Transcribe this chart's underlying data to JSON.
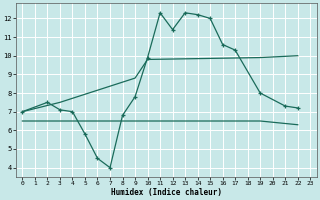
{
  "background_color": "#c8e8e8",
  "grid_color": "#ffffff",
  "line_color": "#1a6b5a",
  "xlabel": "Humidex (Indice chaleur)",
  "xlim": [
    -0.5,
    23.5
  ],
  "ylim": [
    3.5,
    12.8
  ],
  "xticks": [
    0,
    1,
    2,
    3,
    4,
    5,
    6,
    7,
    8,
    9,
    10,
    11,
    12,
    13,
    14,
    15,
    16,
    17,
    18,
    19,
    20,
    21,
    22,
    23
  ],
  "yticks": [
    4,
    5,
    6,
    7,
    8,
    9,
    10,
    11,
    12
  ],
  "jagged_x": [
    0,
    2,
    3,
    4,
    5,
    6,
    7,
    8,
    9,
    10,
    11,
    12,
    13,
    14,
    15,
    16,
    17,
    19,
    21,
    22
  ],
  "jagged_y": [
    7.0,
    7.5,
    7.1,
    7.0,
    5.8,
    4.5,
    4.0,
    6.8,
    7.8,
    9.9,
    12.3,
    11.4,
    12.3,
    12.2,
    12.0,
    10.6,
    10.3,
    8.0,
    7.3,
    7.2
  ],
  "rising_x": [
    0,
    3,
    9,
    10,
    19,
    22
  ],
  "rising_y": [
    7.0,
    7.5,
    8.8,
    9.8,
    9.9,
    10.0
  ],
  "flat_x": [
    0,
    3,
    5,
    19,
    22
  ],
  "flat_y": [
    6.5,
    6.5,
    6.5,
    6.5,
    6.3
  ]
}
